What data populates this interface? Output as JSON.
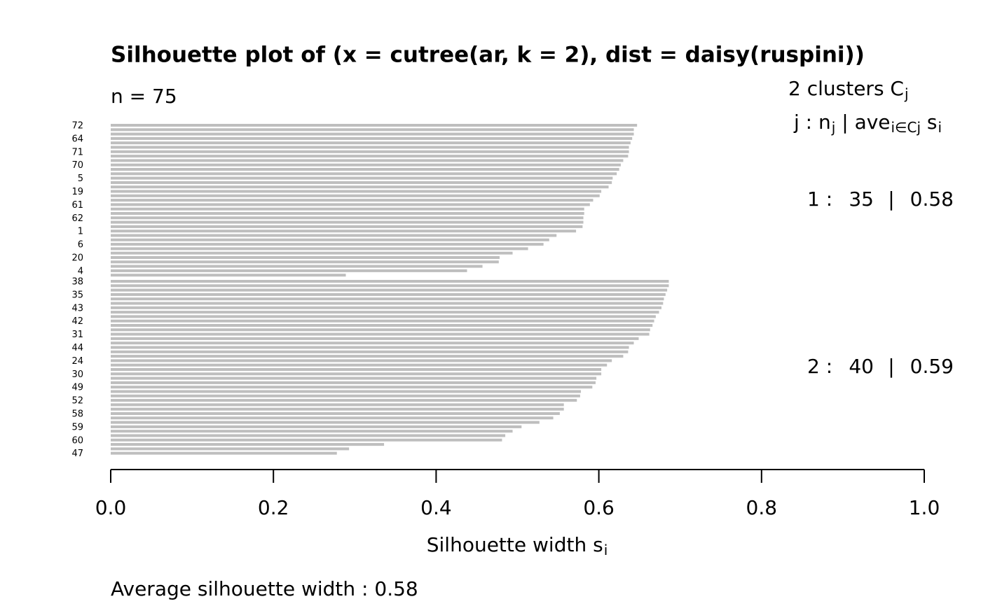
{
  "chart_data": {
    "type": "bar",
    "orientation": "horizontal",
    "title": "Silhouette plot of (x = cutree(ar, k = 2), dist = daisy(ruspini))",
    "n_label": "n =",
    "n": 75,
    "legend_title": [
      {
        "text": "2  clusters  C"
      },
      {
        "text": "j",
        "sub": true
      }
    ],
    "legend_header": [
      {
        "text": "j :  n"
      },
      {
        "text": "j",
        "sub": true
      },
      {
        "text": " | ave"
      },
      {
        "text": "i∈Cj",
        "sub": true
      },
      {
        "text": "  s"
      },
      {
        "text": "i",
        "sub": true
      }
    ],
    "legend_rows": [
      {
        "cluster": "1 :",
        "size": 35,
        "sep": "|",
        "ave": 0.58
      },
      {
        "cluster": "2 :",
        "size": 40,
        "sep": "|",
        "ave": 0.59
      }
    ],
    "xlabel": [
      {
        "text": "Silhouette width s"
      },
      {
        "text": "i",
        "sub": true
      }
    ],
    "average_label": "Average silhouette width :",
    "average": 0.58,
    "color": "#bebebe",
    "xlim": [
      0,
      1
    ],
    "xticks": [
      {
        "value": 0,
        "label": "0.0"
      },
      0.2,
      0.4,
      0.6,
      0.8,
      {
        "value": 1,
        "label": "1.0"
      }
    ],
    "categories": [
      "72",
      null,
      null,
      "64",
      null,
      null,
      "71",
      null,
      null,
      "70",
      null,
      null,
      "5",
      null,
      null,
      "19",
      null,
      null,
      "61",
      null,
      null,
      "62",
      null,
      null,
      "1",
      null,
      null,
      "6",
      null,
      null,
      "20",
      null,
      null,
      "4",
      null,
      "38",
      null,
      null,
      "35",
      null,
      null,
      "43",
      null,
      null,
      "42",
      null,
      null,
      "31",
      null,
      null,
      "44",
      null,
      null,
      "24",
      null,
      null,
      "30",
      null,
      null,
      "49",
      null,
      null,
      "52",
      null,
      null,
      "58",
      null,
      null,
      "59",
      null,
      null,
      "60",
      null,
      null,
      "47"
    ],
    "values": [
      0.647,
      0.643,
      0.643,
      0.641,
      0.639,
      0.637,
      0.637,
      0.636,
      0.63,
      0.627,
      0.625,
      0.622,
      0.617,
      0.616,
      0.612,
      0.603,
      0.601,
      0.593,
      0.589,
      0.582,
      0.582,
      0.581,
      0.581,
      0.58,
      0.572,
      0.548,
      0.539,
      0.532,
      0.513,
      0.494,
      0.478,
      0.477,
      0.457,
      0.438,
      0.289,
      0.686,
      0.686,
      0.684,
      0.682,
      0.68,
      0.679,
      0.677,
      0.674,
      0.67,
      0.668,
      0.666,
      0.663,
      0.662,
      0.649,
      0.643,
      0.637,
      0.636,
      0.63,
      0.616,
      0.61,
      0.603,
      0.603,
      0.597,
      0.596,
      0.592,
      0.578,
      0.577,
      0.573,
      0.557,
      0.557,
      0.552,
      0.544,
      0.527,
      0.505,
      0.494,
      0.485,
      0.481,
      0.336,
      0.293,
      0.278
    ]
  }
}
